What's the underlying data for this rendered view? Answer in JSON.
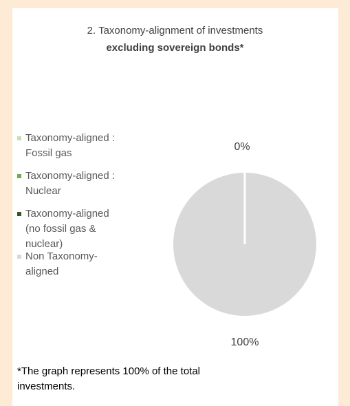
{
  "chart_data": {
    "type": "pie",
    "title": "2. Taxonomy-alignment of investments",
    "subtitle": "excluding sovereign bonds*",
    "categories": [
      "Taxonomy-aligned : Fossil gas",
      "Taxonomy-aligned : Nuclear",
      "Taxonomy-aligned (no fossil gas & nuclear)",
      "Non Taxonomy-aligned"
    ],
    "values": [
      0,
      0,
      0,
      100
    ],
    "value_labels": [
      "0%",
      null,
      null,
      "100%"
    ],
    "colors": [
      "#c5e0b3",
      "#70ad47",
      "#375623",
      "#d9d9d9"
    ],
    "note": "*The graph represents 100% of the total investments."
  }
}
